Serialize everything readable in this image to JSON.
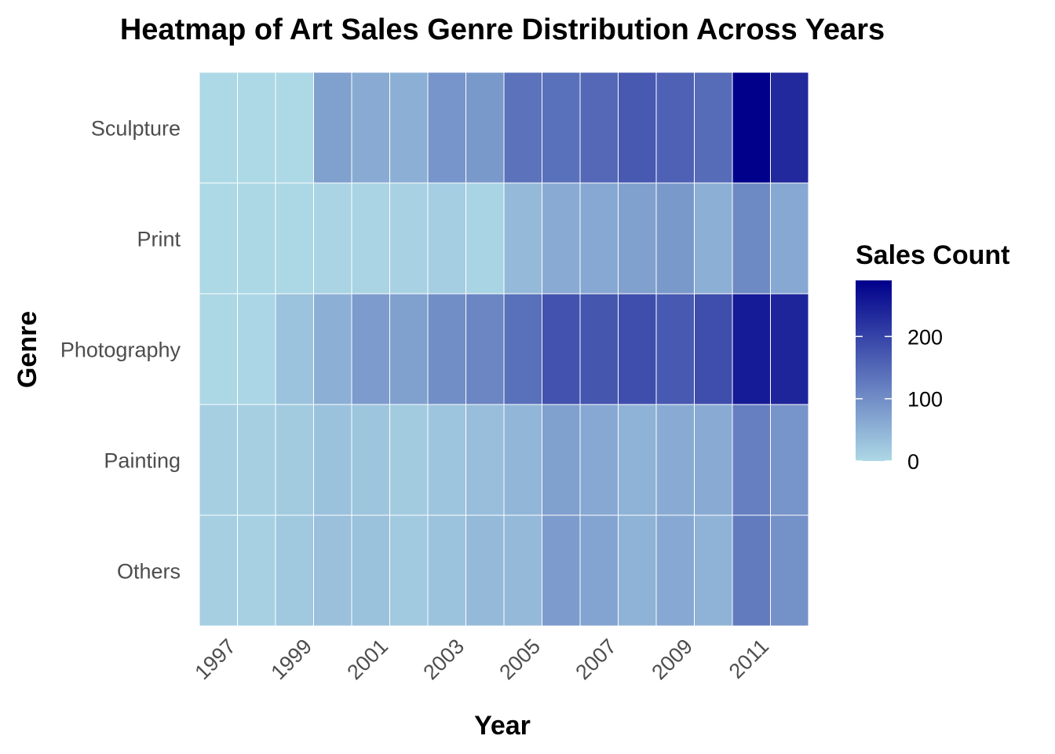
{
  "chart_data": {
    "type": "heatmap",
    "title": "Heatmap of Art Sales Genre Distribution Across Years",
    "xlabel": "Year",
    "ylabel": "Genre",
    "x": [
      1997,
      1998,
      1999,
      2000,
      2001,
      2002,
      2003,
      2004,
      2005,
      2006,
      2007,
      2008,
      2009,
      2010,
      2011,
      2012
    ],
    "x_tick_labels": [
      "1997",
      "1999",
      "2001",
      "2003",
      "2005",
      "2007",
      "2009",
      "2011"
    ],
    "y": [
      "Others",
      "Painting",
      "Photography",
      "Print",
      "Sculpture"
    ],
    "values": {
      "Sculpture": [
        0,
        0,
        0,
        75,
        60,
        55,
        90,
        85,
        135,
        140,
        150,
        170,
        160,
        145,
        290,
        235
      ],
      "Print": [
        0,
        2,
        2,
        5,
        5,
        8,
        14,
        6,
        40,
        60,
        65,
        75,
        85,
        55,
        105,
        65
      ],
      "Photography": [
        2,
        3,
        28,
        55,
        80,
        75,
        100,
        110,
        140,
        180,
        175,
        185,
        170,
        185,
        255,
        240
      ],
      "Painting": [
        12,
        12,
        18,
        30,
        25,
        18,
        25,
        35,
        45,
        75,
        65,
        50,
        60,
        60,
        120,
        90
      ],
      "Others": [
        12,
        10,
        22,
        32,
        30,
        20,
        28,
        40,
        42,
        80,
        70,
        50,
        65,
        50,
        125,
        95
      ]
    },
    "colorbar": {
      "title": "Sales Count",
      "range": [
        0,
        290
      ],
      "ticks": [
        0,
        100,
        200
      ],
      "tick_labels": [
        "0",
        "100",
        "200"
      ],
      "low_color": "#add8e6",
      "high_color": "#00008b"
    },
    "grid": false,
    "legend_position": "right"
  }
}
